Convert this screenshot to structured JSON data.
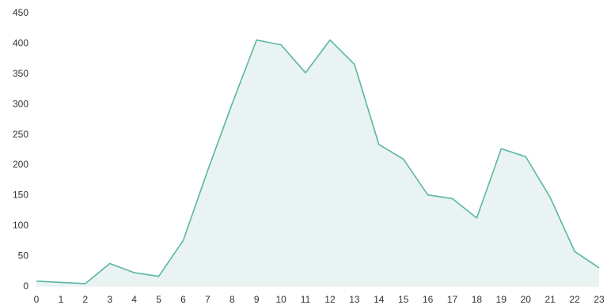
{
  "chart_data": {
    "type": "area",
    "title": "",
    "xlabel": "",
    "ylabel": "",
    "x": [
      0,
      1,
      2,
      3,
      4,
      5,
      6,
      7,
      8,
      9,
      10,
      11,
      12,
      13,
      14,
      15,
      16,
      17,
      18,
      19,
      20,
      21,
      22,
      23
    ],
    "x_tick_labels": [
      "0",
      "1",
      "2",
      "3",
      "4",
      "5",
      "6",
      "7",
      "8",
      "9",
      "10",
      "11",
      "12",
      "13",
      "14",
      "15",
      "16",
      "17",
      "18",
      "19",
      "20",
      "21",
      "22",
      "23"
    ],
    "series": [
      {
        "values": [
          8,
          6,
          4,
          37,
          22,
          16,
          75,
          190,
          300,
          405,
          397,
          351,
          405,
          365,
          233,
          209,
          150,
          144,
          112,
          226,
          213,
          146,
          57,
          30
        ],
        "line_color": "#5bb5a3",
        "fill_color": "#e8f3f2"
      }
    ],
    "ylim": [
      0,
      450
    ],
    "y_ticks": [
      0,
      50,
      100,
      150,
      200,
      250,
      300,
      350,
      400,
      450
    ],
    "y_tick_labels": [
      "0",
      "50",
      "100",
      "150",
      "200",
      "250",
      "300",
      "350",
      "400",
      "450"
    ],
    "grid": "horizontal-baseline-only",
    "legend": "none"
  }
}
